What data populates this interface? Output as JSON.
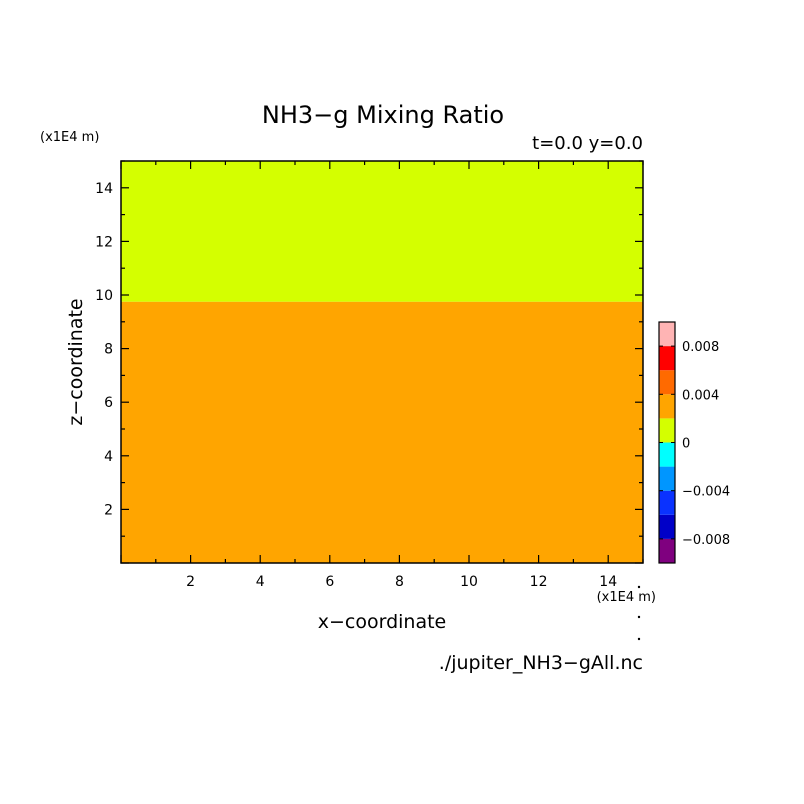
{
  "chart_data": {
    "type": "heatmap",
    "title": "NH3−g Mixing Ratio",
    "subtitle": "t=0.0 y=0.0",
    "xlabel": "x−coordinate",
    "ylabel": "z−coordinate",
    "x_unit": "(x1E4 m)",
    "y_unit": "(x1E4 m)",
    "source_file": "./jupiter_NH3−gAll.nc",
    "xlim": [
      0,
      15
    ],
    "ylim": [
      0,
      15
    ],
    "x_ticks": [
      2,
      4,
      6,
      8,
      10,
      12,
      14
    ],
    "y_ticks": [
      2,
      4,
      6,
      8,
      10,
      12,
      14
    ],
    "regions": [
      {
        "y_from": 0,
        "y_to": 9.75,
        "value_range": [
          0.002,
          0.004
        ],
        "color": "#ffa500"
      },
      {
        "y_from": 9.75,
        "y_to": 15,
        "value_range": [
          -0.002,
          0
        ],
        "color": "#d4ff00"
      }
    ],
    "colorbar": {
      "min": -0.01,
      "max": 0.01,
      "colors": [
        "#7f007f",
        "#0000c8",
        "#0a32ff",
        "#0096ff",
        "#00ffff",
        "#d4ff00",
        "#ffa500",
        "#ff6a00",
        "#ff0000",
        "#ffb4b4"
      ],
      "tick_values": [
        0.008,
        0.004,
        0,
        -0.004,
        -0.008
      ],
      "tick_labels": [
        "0.008",
        "0.004",
        "0",
        "−0.004",
        "−0.008"
      ]
    }
  }
}
